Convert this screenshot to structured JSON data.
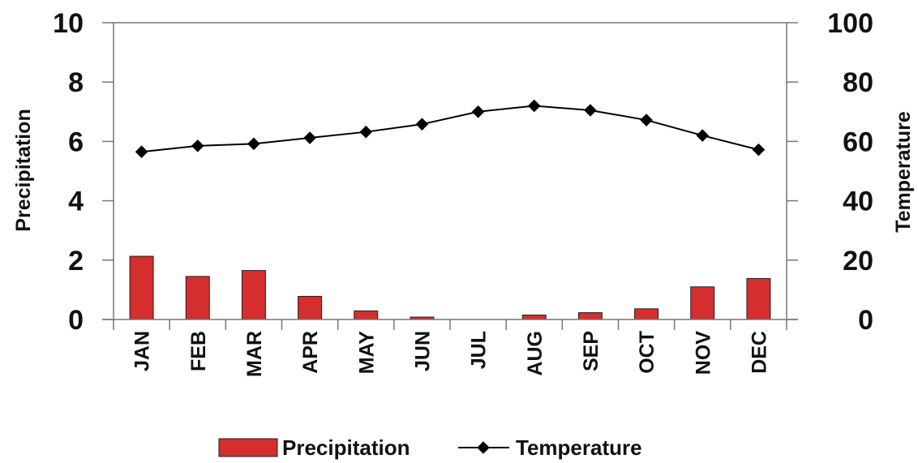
{
  "chart_data": {
    "type": "bar",
    "categories": [
      "JAN",
      "FEB",
      "MAR",
      "APR",
      "MAY",
      "JUN",
      "JUL",
      "AUG",
      "SEP",
      "OCT",
      "NOV",
      "DEC"
    ],
    "series": [
      {
        "name": "Precipitation",
        "type": "bar",
        "axis": "left",
        "color": "#d42e2e",
        "values": [
          2.13,
          1.45,
          1.65,
          0.78,
          0.29,
          0.08,
          0.0,
          0.15,
          0.23,
          0.36,
          1.1,
          1.38
        ]
      },
      {
        "name": "Temperature",
        "type": "line",
        "axis": "right",
        "color": "#000000",
        "values": [
          56.5,
          58.5,
          59.2,
          61.2,
          63.2,
          65.8,
          70.0,
          72.0,
          70.5,
          67.2,
          62.0,
          57.2
        ]
      }
    ],
    "ylabel": "Precipitation",
    "ylim": [
      0,
      10
    ],
    "yticks": [
      "0",
      "2",
      "4",
      "6",
      "8",
      "10"
    ],
    "y2label": "Temperature",
    "y2lim": [
      0,
      100
    ],
    "y2ticks": [
      "0",
      "20",
      "40",
      "60",
      "80",
      "100"
    ],
    "grid": false,
    "legend_position": "bottom"
  }
}
